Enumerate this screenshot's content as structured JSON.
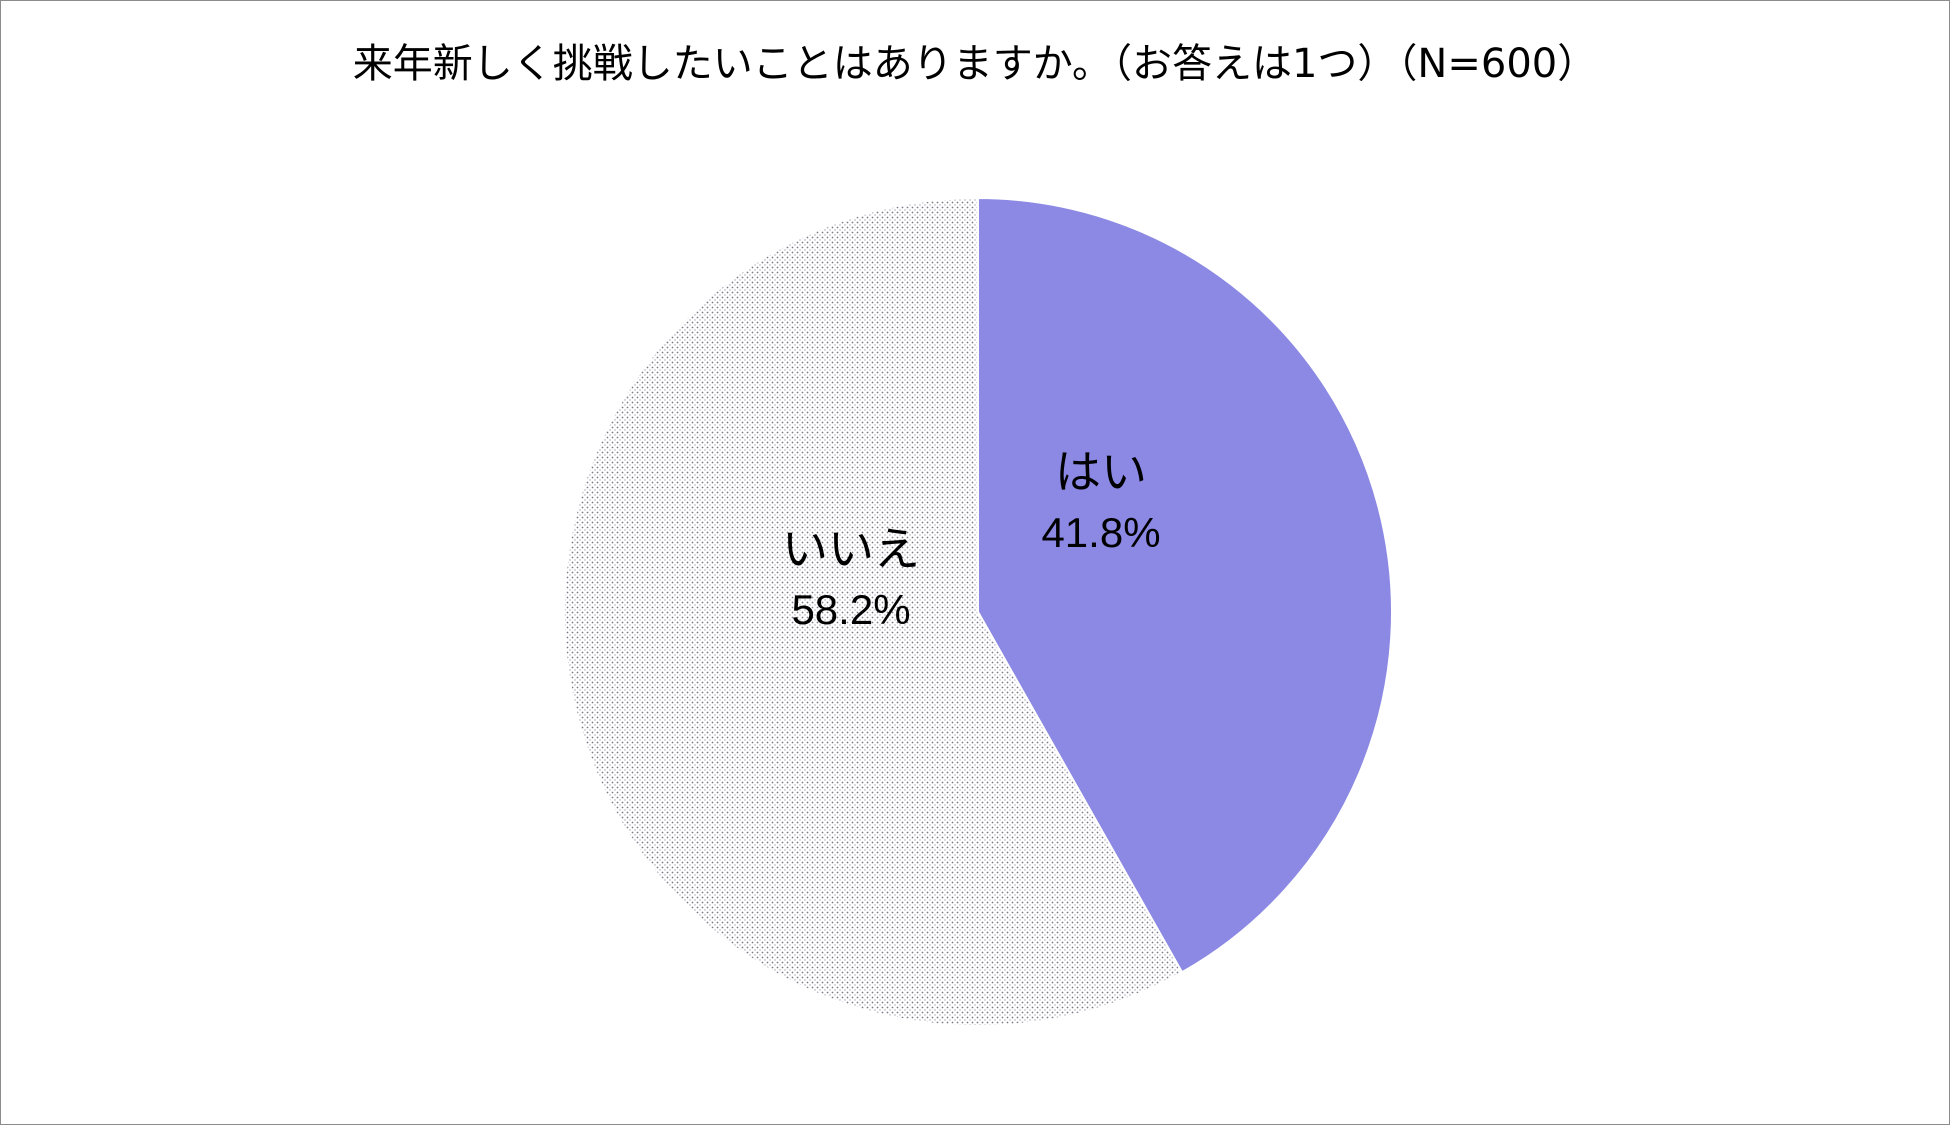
{
  "chart_data": {
    "type": "pie",
    "title": "来年新しく挑戦したいことはありますか。（お答えは1つ）（N=600）",
    "slices": [
      {
        "label": "はい",
        "value": 41.8,
        "display": "41.8%",
        "color": "#8b89e3",
        "pattern": "solid"
      },
      {
        "label": "いいえ",
        "value": 58.2,
        "display": "58.2%",
        "color": "#ffffff",
        "pattern": "dotted"
      }
    ],
    "legend": "none",
    "start_angle_deg": 0,
    "direction": "clockwise"
  }
}
